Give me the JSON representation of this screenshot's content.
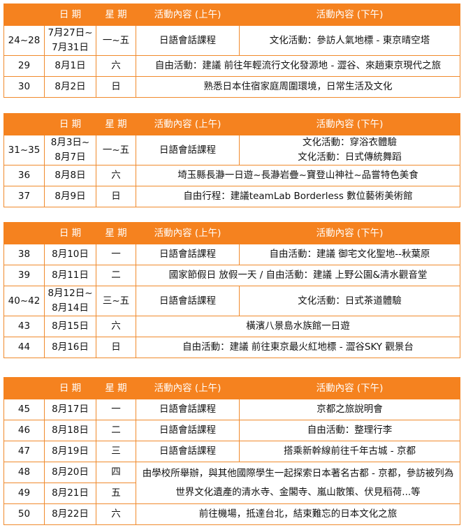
{
  "tables": [
    {
      "header": [
        "日 期",
        "星 期",
        "活動內容 (上午)",
        "活動內容 (下午)"
      ],
      "rows": [
        [
          "24~28",
          "7月27日~\n7月31日",
          "一~五",
          "日語會話課程",
          "文化活動：參訪人氣地標 - 東京晴空塔"
        ],
        [
          "29",
          "8月1日",
          "六",
          "自由活動：建議 前往年輕流行文化發源地 - 澀谷、來趟東京現代之旅"
        ],
        [
          "30",
          "8月2日",
          "日",
          "熟悉日本住宿家庭周圍環境，日常生活及文化"
        ]
      ]
    },
    {
      "header": [
        "日 期",
        "星 期",
        "活動內容 (上午)",
        "活動內容 (下午)"
      ],
      "rows": [
        [
          "31~35",
          "8月3日~\n8月7日",
          "一~五",
          "日語會話課程",
          "文化活動：穿浴衣體驗\n文化活動：日式傳統舞蹈"
        ],
        [
          "36",
          "8月8日",
          "六",
          "埼玉縣長瀞一日遊~長瀞岩疊~寶登山神社~品嘗特色美食"
        ],
        [
          "37",
          "8月9日",
          "日",
          "自由行程：建議teamLab Borderless 數位藝術美術館"
        ]
      ]
    },
    {
      "header": [
        "日 期",
        "星 期",
        "活動內容 (上午)",
        "活動內容 (下午)"
      ],
      "rows": [
        [
          "38",
          "8月10日",
          "一",
          "日語會話課程",
          "自由活動：建議 御宅文化聖地--秋葉原"
        ],
        [
          "39",
          "8月11日",
          "二",
          "國家節假日 放假一天 / 自由活動：建議 上野公園&清水觀音堂"
        ],
        [
          "40~42",
          "8月12日~\n8月14日",
          "三~五",
          "日語會話課程",
          "文化活動：日式茶道體驗"
        ],
        [
          "43",
          "8月15日",
          "六",
          "橫濱八景島水族館一日遊"
        ],
        [
          "44",
          "8月16日",
          "日",
          "自由活動：建議 前往東京最火紅地標 - 澀谷SKY 觀景台"
        ]
      ]
    },
    {
      "header": [
        "日 期",
        "星 期",
        "活動內容 (上午)",
        "活動內容 (下午)"
      ],
      "rows": [
        [
          "45",
          "8月17日",
          "一",
          "日語會話課程",
          "京都之旅說明會"
        ],
        [
          "46",
          "8月18日",
          "二",
          "日語會話課程",
          "自由活動：整理行李"
        ],
        [
          "47",
          "8月19日",
          "三",
          "日語會話課程",
          "搭乘新幹線前往千年古城 - 京都"
        ],
        [
          "48",
          "8月20日",
          "四",
          "由學校所舉辦，與其他國際學生一起探索日本著名古都 - 京都，參訪被列為世界文化遺產的清水寺、金閣寺、嵐山散策、伏見稻荷...等"
        ],
        [
          "49",
          "8月21日",
          "五"
        ],
        [
          "50",
          "8月22日",
          "六",
          "前往機場，抵達台北，結束難忘的日本文化之旅"
        ]
      ]
    }
  ]
}
